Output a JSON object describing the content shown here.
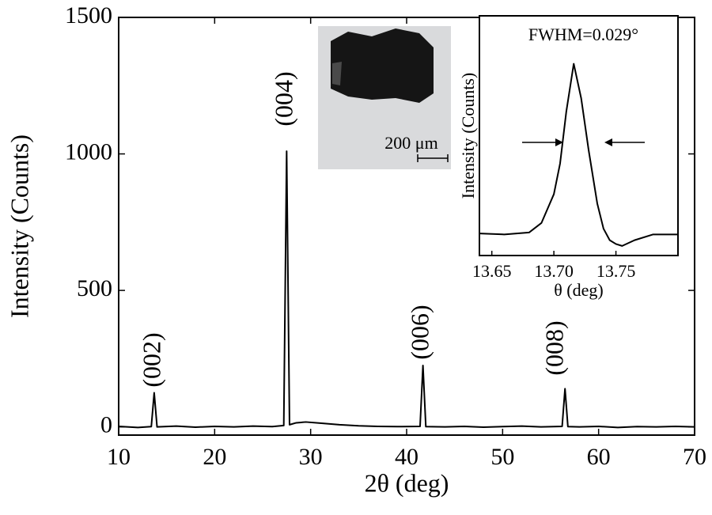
{
  "chart_data": [
    {
      "type": "line",
      "xlabel": "2θ (deg)",
      "ylabel": "Intensity (Counts)",
      "x": [
        10,
        12,
        13.4,
        13.7,
        14.0,
        16,
        18,
        20,
        22,
        24,
        26,
        27.2,
        27.5,
        27.8,
        28.5,
        29.5,
        31,
        33,
        35,
        37,
        39,
        41.4,
        41.7,
        42.0,
        44,
        46,
        48,
        50,
        52,
        54,
        56.2,
        56.5,
        56.8,
        58,
        60,
        62,
        64,
        66,
        68,
        70
      ],
      "values": [
        2,
        -2,
        1,
        125,
        0,
        3,
        -1,
        2,
        0,
        3,
        1,
        5,
        1010,
        8,
        15,
        18,
        14,
        8,
        4,
        2,
        1,
        2,
        225,
        1,
        0,
        2,
        -1,
        1,
        3,
        0,
        2,
        140,
        1,
        0,
        2,
        -2,
        1,
        0,
        2,
        0
      ],
      "color": "#000000",
      "xlim": [
        10,
        70
      ],
      "xticks": [
        10,
        20,
        30,
        40,
        50,
        60,
        70
      ],
      "ylim": [
        -30,
        1500
      ],
      "yticks": [
        0,
        500,
        1000,
        1500
      ],
      "annotations": [
        "(002)",
        "(004)",
        "(006)",
        "(008)"
      ]
    },
    {
      "type": "line",
      "title": "FWHM=0.029°",
      "xlabel": "θ (deg)",
      "ylabel": "Intensity (Counts)",
      "x": [
        13.64,
        13.66,
        13.68,
        13.69,
        13.7,
        13.705,
        13.71,
        13.716,
        13.722,
        13.728,
        13.735,
        13.74,
        13.745,
        13.75,
        13.755,
        13.765,
        13.78,
        13.8
      ],
      "values": [
        0.115,
        0.11,
        0.12,
        0.17,
        0.32,
        0.48,
        0.75,
        1.0,
        0.82,
        0.55,
        0.27,
        0.14,
        0.08,
        0.06,
        0.05,
        0.08,
        0.11,
        0.11
      ],
      "color": "#000000",
      "xlim": [
        13.64,
        13.8
      ],
      "xticks": [
        {
          "value": 13.65,
          "label": "13.65"
        },
        {
          "value": 13.7,
          "label": "13.70"
        },
        {
          "value": 13.75,
          "label": "13.75"
        }
      ],
      "ylim": [
        0,
        1.25
      ]
    }
  ],
  "image_caption": "200 μm"
}
